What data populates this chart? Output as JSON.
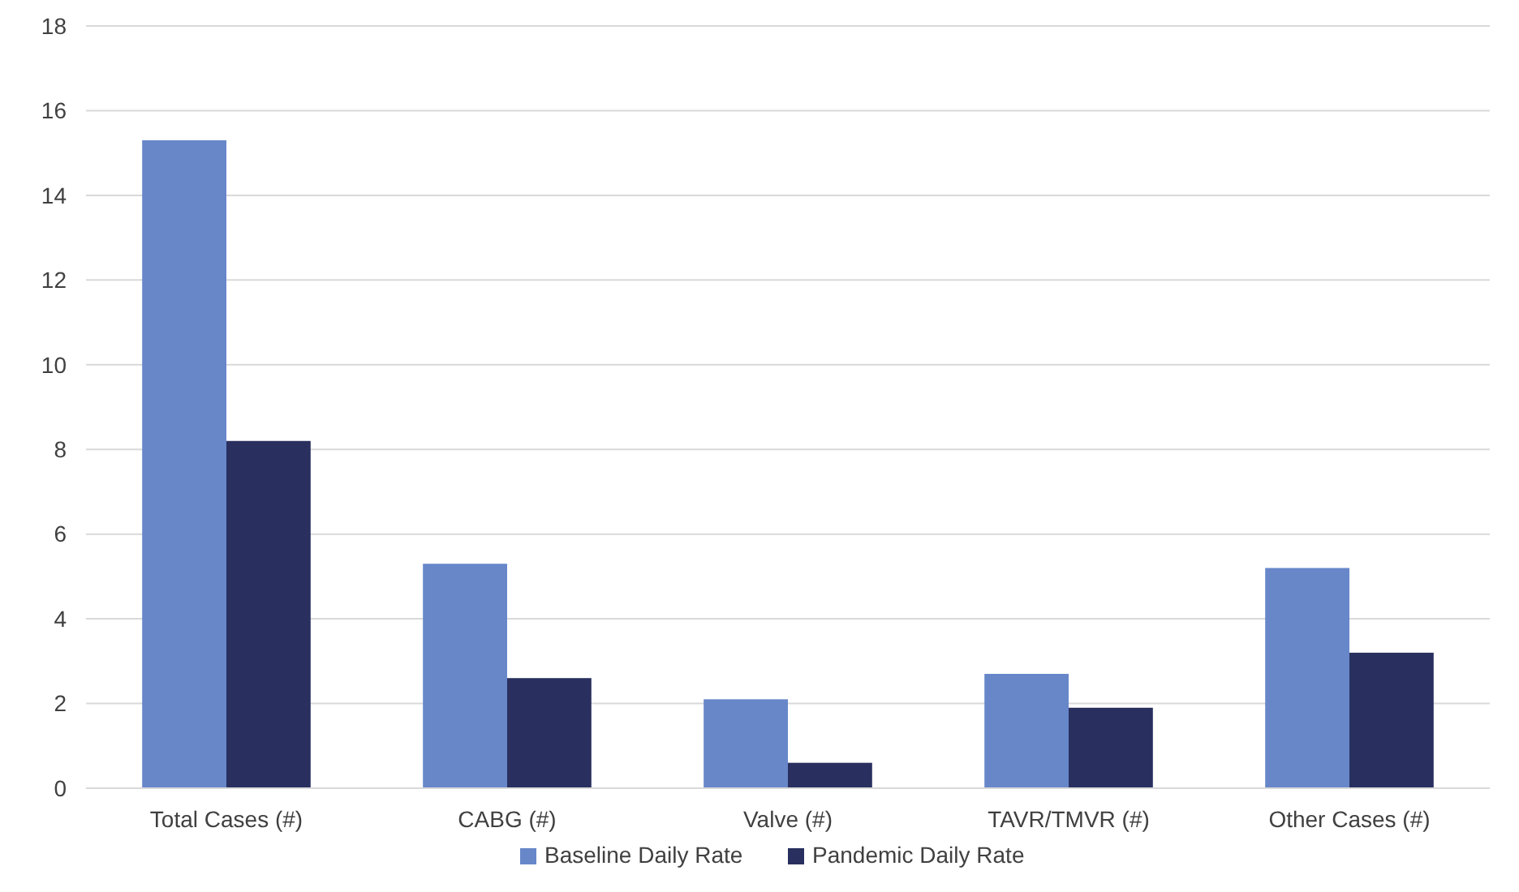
{
  "chart_data": {
    "type": "bar",
    "categories": [
      "Total Cases (#)",
      "CABG (#)",
      "Valve (#)",
      "TAVR/TMVR (#)",
      "Other Cases (#)"
    ],
    "series": [
      {
        "name": "Baseline Daily Rate",
        "color": "#6787c9",
        "values": [
          15.3,
          5.3,
          2.1,
          2.7,
          5.2
        ]
      },
      {
        "name": "Pandemic Daily Rate",
        "color": "#29305f",
        "values": [
          8.2,
          2.6,
          0.6,
          1.9,
          3.2
        ]
      }
    ],
    "ylim": [
      0,
      18
    ],
    "yticks": [
      0,
      2,
      4,
      6,
      8,
      10,
      12,
      14,
      16,
      18
    ],
    "grid": "y",
    "legend": "bottom"
  }
}
